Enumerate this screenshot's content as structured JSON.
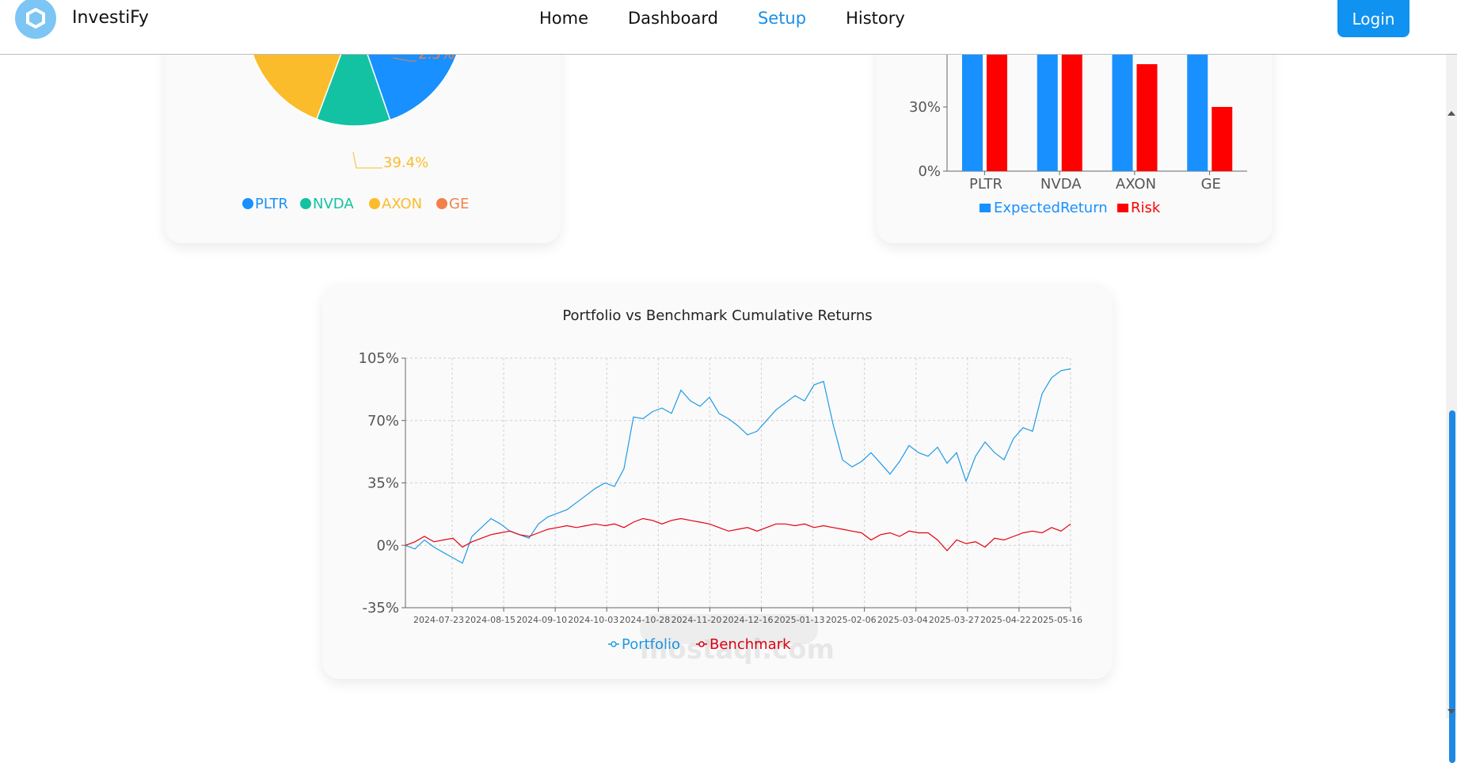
{
  "navbar": {
    "brand": "InvestiFy",
    "links": [
      "Home",
      "Dashboard",
      "Setup",
      "History"
    ],
    "active_link": "Setup",
    "login_label": "Login"
  },
  "colors": {
    "primary": "#1092f0",
    "pltr": "#1890ff",
    "nvda": "#13c2a3",
    "axon": "#fbbc2b",
    "ge": "#f2804a",
    "expected": "#1890ff",
    "risk": "#ff0000",
    "portfolio": "#1f9be5",
    "benchmark": "#e60012"
  },
  "pie_card": {
    "chart_data": {
      "type": "pie",
      "labels": [
        "PLTR",
        "NVDA",
        "AXON",
        "GE"
      ],
      "visible_labels": [
        "2.5%",
        "39.4%"
      ],
      "values": [
        47.1,
        11.0,
        39.4,
        2.5
      ],
      "legend": [
        "PLTR",
        "NVDA",
        "AXON",
        "GE"
      ]
    }
  },
  "bar_card": {
    "chart_data": {
      "type": "bar",
      "categories": [
        "PLTR",
        "NVDA",
        "AXON",
        "GE"
      ],
      "series": [
        {
          "name": "ExpectedReturn",
          "values": [
            150,
            120,
            110,
            80
          ]
        },
        {
          "name": "Risk",
          "values": [
            95,
            75,
            50,
            30
          ]
        }
      ],
      "yticks": [
        "0%",
        "30%"
      ],
      "legend": [
        "ExpectedReturn",
        "Risk"
      ]
    }
  },
  "line_card": {
    "chart_data": {
      "type": "line",
      "title": "Portfolio vs Benchmark Cumulative Returns",
      "ylim": [
        -35,
        105
      ],
      "yticks": [
        "105%",
        "70%",
        "35%",
        "0%",
        "-35%"
      ],
      "xticks": [
        "2024-07-23",
        "2024-08-15",
        "2024-09-10",
        "2024-10-03",
        "2024-10-28",
        "2024-11-20",
        "2024-12-16",
        "2025-01-13",
        "2025-02-06",
        "2025-03-04",
        "2025-03-27",
        "2025-04-22",
        "2025-05-16"
      ],
      "series": [
        {
          "name": "Portfolio",
          "points": [
            [
              0,
              0
            ],
            [
              0.3,
              -2
            ],
            [
              0.6,
              3
            ],
            [
              0.9,
              -1
            ],
            [
              1.2,
              -4
            ],
            [
              1.5,
              -7
            ],
            [
              1.8,
              -10
            ],
            [
              2.1,
              5
            ],
            [
              2.4,
              10
            ],
            [
              2.7,
              15
            ],
            [
              3.0,
              12
            ],
            [
              3.3,
              8
            ],
            [
              3.6,
              6
            ],
            [
              3.9,
              4
            ],
            [
              4.2,
              12
            ],
            [
              4.5,
              16
            ],
            [
              4.8,
              18
            ],
            [
              5.1,
              20
            ],
            [
              5.4,
              24
            ],
            [
              5.7,
              28
            ],
            [
              6.0,
              32
            ],
            [
              6.3,
              35
            ],
            [
              6.6,
              33
            ],
            [
              6.9,
              43
            ],
            [
              7.2,
              72
            ],
            [
              7.5,
              71
            ],
            [
              7.8,
              75
            ],
            [
              8.1,
              77
            ],
            [
              8.4,
              74
            ],
            [
              8.7,
              87
            ],
            [
              9.0,
              81
            ],
            [
              9.3,
              78
            ],
            [
              9.6,
              83
            ],
            [
              9.9,
              74
            ],
            [
              10.2,
              71
            ],
            [
              10.5,
              67
            ],
            [
              10.8,
              62
            ],
            [
              11.1,
              64
            ],
            [
              11.4,
              70
            ],
            [
              11.7,
              76
            ],
            [
              12.0,
              80
            ],
            [
              12.3,
              84
            ],
            [
              12.6,
              81
            ],
            [
              12.9,
              90
            ],
            [
              13.2,
              92
            ],
            [
              13.5,
              68
            ],
            [
              13.8,
              48
            ],
            [
              14.1,
              44
            ],
            [
              14.4,
              47
            ],
            [
              14.7,
              52
            ],
            [
              15.0,
              46
            ],
            [
              15.3,
              40
            ],
            [
              15.6,
              47
            ],
            [
              15.9,
              56
            ],
            [
              16.2,
              52
            ],
            [
              16.5,
              50
            ],
            [
              16.8,
              55
            ],
            [
              17.1,
              46
            ],
            [
              17.4,
              52
            ],
            [
              17.7,
              36
            ],
            [
              18.0,
              50
            ],
            [
              18.3,
              58
            ],
            [
              18.6,
              52
            ],
            [
              18.9,
              48
            ],
            [
              19.2,
              60
            ],
            [
              19.5,
              66
            ],
            [
              19.8,
              64
            ],
            [
              20.1,
              85
            ],
            [
              20.4,
              94
            ],
            [
              20.7,
              98
            ],
            [
              21.0,
              99
            ]
          ]
        },
        {
          "name": "Benchmark",
          "points": [
            [
              0,
              0
            ],
            [
              0.3,
              2
            ],
            [
              0.6,
              5
            ],
            [
              0.9,
              2
            ],
            [
              1.2,
              3
            ],
            [
              1.5,
              4
            ],
            [
              1.8,
              -1
            ],
            [
              2.1,
              2
            ],
            [
              2.4,
              4
            ],
            [
              2.7,
              6
            ],
            [
              3.0,
              7
            ],
            [
              3.3,
              8
            ],
            [
              3.6,
              6
            ],
            [
              3.9,
              5
            ],
            [
              4.2,
              7
            ],
            [
              4.5,
              9
            ],
            [
              4.8,
              10
            ],
            [
              5.1,
              11
            ],
            [
              5.4,
              10
            ],
            [
              5.7,
              11
            ],
            [
              6.0,
              12
            ],
            [
              6.3,
              11
            ],
            [
              6.6,
              12
            ],
            [
              6.9,
              10
            ],
            [
              7.2,
              13
            ],
            [
              7.5,
              15
            ],
            [
              7.8,
              14
            ],
            [
              8.1,
              12
            ],
            [
              8.4,
              14
            ],
            [
              8.7,
              15
            ],
            [
              9.0,
              14
            ],
            [
              9.3,
              13
            ],
            [
              9.6,
              12
            ],
            [
              9.9,
              10
            ],
            [
              10.2,
              8
            ],
            [
              10.5,
              9
            ],
            [
              10.8,
              10
            ],
            [
              11.1,
              8
            ],
            [
              11.4,
              10
            ],
            [
              11.7,
              12
            ],
            [
              12.0,
              12
            ],
            [
              12.3,
              11
            ],
            [
              12.6,
              12
            ],
            [
              12.9,
              10
            ],
            [
              13.2,
              11
            ],
            [
              13.5,
              10
            ],
            [
              13.8,
              9
            ],
            [
              14.1,
              8
            ],
            [
              14.4,
              7
            ],
            [
              14.7,
              3
            ],
            [
              15.0,
              6
            ],
            [
              15.3,
              7
            ],
            [
              15.6,
              5
            ],
            [
              15.9,
              8
            ],
            [
              16.2,
              7
            ],
            [
              16.5,
              7
            ],
            [
              16.8,
              3
            ],
            [
              17.1,
              -3
            ],
            [
              17.4,
              3
            ],
            [
              17.7,
              1
            ],
            [
              18.0,
              2
            ],
            [
              18.3,
              -1
            ],
            [
              18.6,
              4
            ],
            [
              18.9,
              3
            ],
            [
              19.2,
              5
            ],
            [
              19.5,
              7
            ],
            [
              19.8,
              8
            ],
            [
              20.1,
              7
            ],
            [
              20.4,
              10
            ],
            [
              20.7,
              8
            ],
            [
              21.0,
              12
            ]
          ]
        }
      ],
      "legend": [
        "Portfolio",
        "Benchmark"
      ]
    }
  },
  "watermark": "mostaql.com"
}
